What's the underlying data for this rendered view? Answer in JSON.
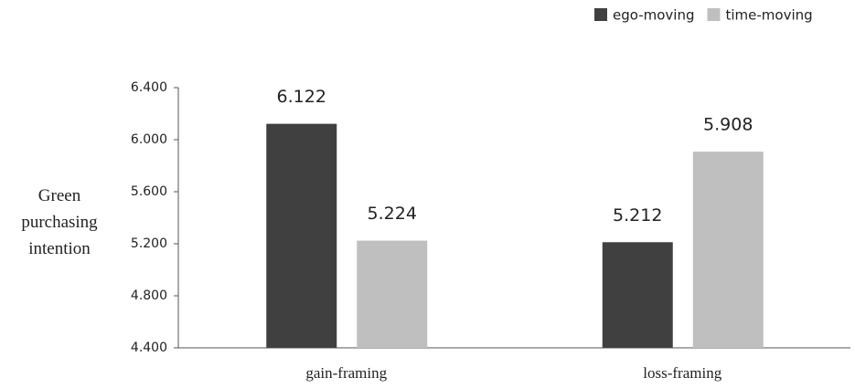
{
  "chart_data": {
    "type": "bar",
    "y_label": "Green purchasing intention",
    "categories": [
      "gain-framing",
      "loss-framing"
    ],
    "series": [
      {
        "name": "ego-moving",
        "color": "#404040",
        "values": [
          6.122,
          5.212
        ]
      },
      {
        "name": "time-moving",
        "color": "#bfbfbf",
        "values": [
          5.224,
          5.908
        ]
      }
    ],
    "ylim": [
      4.4,
      6.4
    ],
    "yticks": [
      {
        "value": 4.4,
        "label": "4.400"
      },
      {
        "value": 4.8,
        "label": "4.800"
      },
      {
        "value": 5.2,
        "label": "5.200"
      },
      {
        "value": 5.6,
        "label": "5.600"
      },
      {
        "value": 6.0,
        "label": "6.000"
      },
      {
        "value": 6.4,
        "label": "6.400"
      }
    ],
    "grid": false,
    "legend": "top-right"
  }
}
